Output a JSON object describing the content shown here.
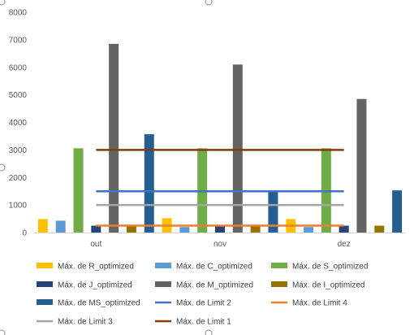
{
  "chart_data": {
    "type": "bar",
    "categories": [
      "out",
      "nov",
      "dez"
    ],
    "ylim": [
      0,
      8000
    ],
    "yticks": [
      0,
      1000,
      2000,
      3000,
      4000,
      5000,
      6000,
      7000,
      8000
    ],
    "grid": false,
    "legend_position": "bottom",
    "series": [
      {
        "name": "Máx. de R_optimized",
        "kind": "bar",
        "color": "#FFC000",
        "values": [
          490,
          520,
          490
        ]
      },
      {
        "name": "Máx. de C_optimized",
        "kind": "bar",
        "color": "#5B9BD5",
        "values": [
          430,
          200,
          200
        ]
      },
      {
        "name": "Máx. de S_optimized",
        "kind": "bar",
        "color": "#70AD47",
        "values": [
          3060,
          3060,
          3060
        ]
      },
      {
        "name": "Máx. de J_optimized",
        "kind": "bar",
        "color": "#264478",
        "values": [
          250,
          250,
          250
        ]
      },
      {
        "name": "Máx. de M_optimized",
        "kind": "bar",
        "color": "#636363",
        "values": [
          6850,
          6100,
          4850
        ]
      },
      {
        "name": "Máx. de I_optimized",
        "kind": "bar",
        "color": "#997300",
        "values": [
          250,
          250,
          250
        ]
      },
      {
        "name": "Máx. de MS_optimized",
        "kind": "bar",
        "color": "#255E91",
        "values": [
          3570,
          1500,
          1530
        ]
      },
      {
        "name": "Máx. de Limit 2",
        "kind": "line",
        "color": "#4472C4",
        "values": [
          1500,
          1500,
          1500
        ]
      },
      {
        "name": "Máx. de Limit 4",
        "kind": "line",
        "color": "#ED7D31",
        "values": [
          250,
          250,
          250
        ]
      },
      {
        "name": "Máx. de Limit 3",
        "kind": "line",
        "color": "#A5A5A5",
        "values": [
          1000,
          1000,
          1000
        ]
      },
      {
        "name": "Máx. de Limit 1",
        "kind": "line",
        "color": "#843C0C",
        "values": [
          3000,
          3000,
          3000
        ]
      }
    ]
  }
}
